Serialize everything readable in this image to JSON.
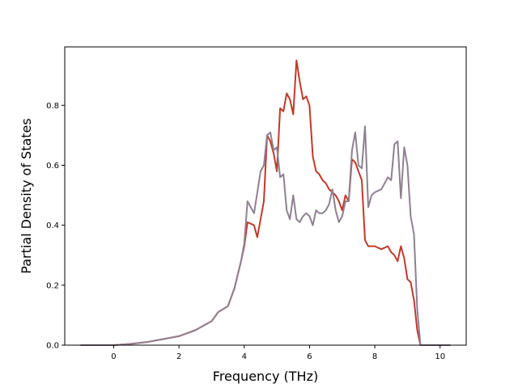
{
  "chart_data": {
    "type": "line",
    "title": "",
    "xlabel": "Frequency (THz)",
    "ylabel": "Partial Density of States",
    "xlim": [
      -1.5,
      10.8
    ],
    "ylim": [
      0.0,
      0.995
    ],
    "xticks": [
      0,
      2,
      4,
      6,
      8,
      10
    ],
    "yticks": [
      0.0,
      0.2,
      0.4,
      0.6,
      0.8
    ],
    "xtick_labels": [
      "0",
      "2",
      "4",
      "6",
      "8",
      "10"
    ],
    "ytick_labels": [
      "0.0",
      "0.2",
      "0.4",
      "0.6",
      "0.8"
    ],
    "grid": false,
    "legend": "none",
    "series": [
      {
        "color": "#c0392b",
        "x": [
          -1.0,
          0.0,
          0.5,
          1.0,
          1.5,
          2.0,
          2.5,
          3.0,
          3.2,
          3.5,
          3.7,
          3.9,
          4.0,
          4.1,
          4.3,
          4.4,
          4.6,
          4.7,
          4.8,
          4.9,
          5.0,
          5.1,
          5.2,
          5.3,
          5.4,
          5.5,
          5.6,
          5.7,
          5.8,
          5.9,
          6.0,
          6.1,
          6.2,
          6.3,
          6.4,
          6.5,
          6.6,
          6.7,
          6.8,
          6.9,
          7.0,
          7.1,
          7.2,
          7.3,
          7.4,
          7.5,
          7.6,
          7.7,
          7.8,
          7.9,
          8.0,
          8.2,
          8.4,
          8.5,
          8.6,
          8.7,
          8.8,
          8.9,
          9.0,
          9.1,
          9.2,
          9.3,
          9.4,
          10.3
        ],
        "y": [
          0.0,
          0.0,
          0.004,
          0.01,
          0.02,
          0.03,
          0.05,
          0.08,
          0.11,
          0.13,
          0.19,
          0.28,
          0.33,
          0.41,
          0.4,
          0.36,
          0.48,
          0.7,
          0.68,
          0.64,
          0.58,
          0.79,
          0.78,
          0.84,
          0.82,
          0.77,
          0.95,
          0.88,
          0.82,
          0.83,
          0.8,
          0.63,
          0.58,
          0.57,
          0.55,
          0.54,
          0.52,
          0.51,
          0.5,
          0.48,
          0.45,
          0.5,
          0.48,
          0.62,
          0.61,
          0.58,
          0.55,
          0.35,
          0.33,
          0.33,
          0.33,
          0.32,
          0.33,
          0.31,
          0.3,
          0.28,
          0.33,
          0.29,
          0.22,
          0.21,
          0.15,
          0.05,
          0.0,
          0.0
        ]
      },
      {
        "color": "#8e8091",
        "x": [
          -1.0,
          0.0,
          0.5,
          1.0,
          1.5,
          2.0,
          2.5,
          3.0,
          3.2,
          3.5,
          3.7,
          3.9,
          4.0,
          4.1,
          4.3,
          4.5,
          4.6,
          4.7,
          4.8,
          4.9,
          5.0,
          5.1,
          5.2,
          5.3,
          5.4,
          5.5,
          5.6,
          5.7,
          5.8,
          5.9,
          6.0,
          6.1,
          6.2,
          6.3,
          6.4,
          6.5,
          6.6,
          6.7,
          6.8,
          6.9,
          7.0,
          7.1,
          7.2,
          7.3,
          7.4,
          7.5,
          7.6,
          7.7,
          7.8,
          7.9,
          8.0,
          8.2,
          8.4,
          8.5,
          8.6,
          8.7,
          8.8,
          8.9,
          9.0,
          9.1,
          9.2,
          9.3,
          9.4,
          10.3
        ],
        "y": [
          0.0,
          0.0,
          0.004,
          0.01,
          0.02,
          0.03,
          0.05,
          0.08,
          0.11,
          0.13,
          0.19,
          0.28,
          0.34,
          0.48,
          0.44,
          0.58,
          0.6,
          0.7,
          0.71,
          0.65,
          0.66,
          0.56,
          0.57,
          0.45,
          0.42,
          0.5,
          0.42,
          0.41,
          0.43,
          0.44,
          0.43,
          0.4,
          0.45,
          0.44,
          0.44,
          0.45,
          0.47,
          0.52,
          0.45,
          0.41,
          0.43,
          0.48,
          0.48,
          0.65,
          0.71,
          0.6,
          0.59,
          0.73,
          0.46,
          0.5,
          0.51,
          0.52,
          0.56,
          0.55,
          0.67,
          0.68,
          0.49,
          0.66,
          0.6,
          0.43,
          0.37,
          0.12,
          0.0,
          0.0
        ]
      }
    ]
  }
}
